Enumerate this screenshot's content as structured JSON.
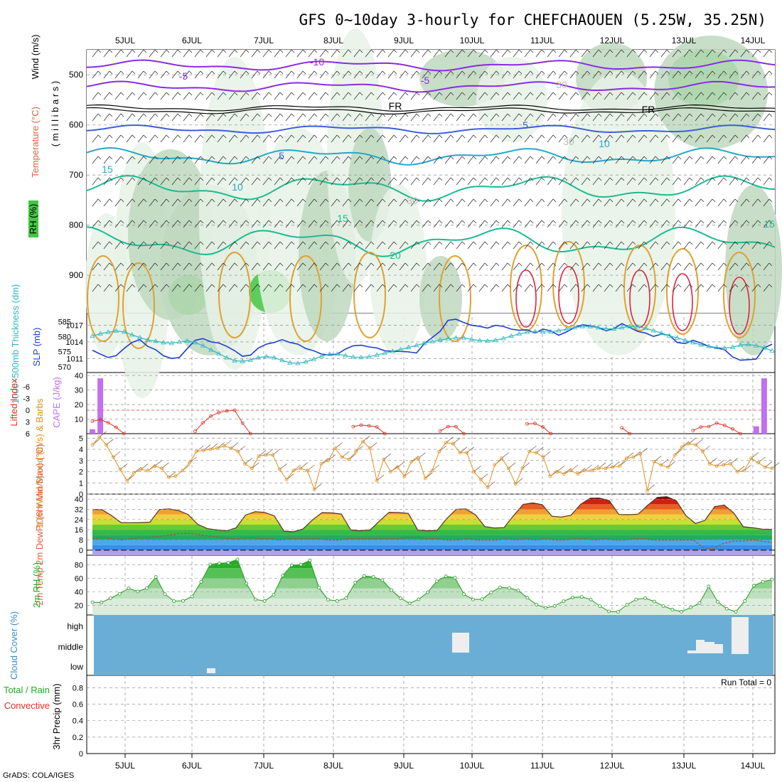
{
  "colors": {
    "temp_contours": [
      "#8a2be2",
      "#3a5fd9",
      "#23a9c9",
      "#1cba92",
      "#e0a030",
      "#e07020",
      "#e02040",
      "#c0108a"
    ],
    "rh_shades": [
      "#e6f2e6",
      "#bed8be",
      "#8fbf8f",
      "#44c744"
    ],
    "slp_line": "#1a3fd0",
    "thickness_line": "#2fb8c0",
    "li_line": "#e03020",
    "cape_bar": "#c070f0",
    "wind_line": "#e09020",
    "cloud_bg": "#6aaed6",
    "cloud_fill": "#eeeeee",
    "rh2m_line": "#229922",
    "dewpt_line": "#a05a2c"
  },
  "chart_data": [
    {
      "type": "heatmap",
      "title": "GFS 0~10day 3-hourly for CHEFCHAOUEN (5.25W, 35.25N)",
      "panel": "upper-air",
      "ylabel_parts": [
        "RH (%)",
        "Temperature (°C)",
        "Wind (m/s)"
      ],
      "yaxis_label": "( m i l l i b a r s )",
      "x_ticks": [
        "5JUL",
        "6JUL",
        "7JUL",
        "8JUL",
        "9JUL",
        "10JUL",
        "11JUL",
        "12JUL",
        "13JUL",
        "14JUL"
      ],
      "y_ticks": [
        500,
        600,
        700,
        800,
        900
      ],
      "ylim": [
        450,
        975
      ],
      "contour_labels": [
        "-10",
        "-5",
        "-5",
        "FR",
        "FR",
        "5",
        "5",
        "10",
        "10",
        "15",
        "15",
        "15",
        "20",
        "30",
        "30",
        "30"
      ],
      "rh_key": "RH (%)",
      "grid": true
    },
    {
      "type": "line",
      "panel": "slp-thickness",
      "ylabel_left": "1000~500mb Thickness (dm)",
      "ylabel_right": "SLP (mb)",
      "left_ticks": [
        570,
        575,
        580,
        585
      ],
      "right_ticks": [
        1011,
        1014,
        1017
      ],
      "series": [
        {
          "name": "SLP (mb)",
          "axis": "right",
          "values": [
            1012.5,
            1011.8,
            1011.2,
            1011.5,
            1012.8,
            1013.9,
            1014.4,
            1013.2,
            1012.6,
            1011.5,
            1011.0,
            1011.2,
            1012.8,
            1014.3,
            1014.6,
            1014.0,
            1013.8,
            1013.2,
            1012.4,
            1011.4,
            1011.6,
            1012.9,
            1013.6,
            1013.9,
            1014.4,
            1013.9,
            1013.6,
            1012.8,
            1012.4,
            1011.8,
            1011.6,
            1011.8,
            1012.7,
            1013.3,
            1013.4,
            1013.1,
            1012.9,
            1012.4,
            1012.3,
            1012.3,
            1012.2,
            1012.0,
            1013.7,
            1014.8,
            1015.9,
            1017.9,
            1018.1,
            1017.5,
            1017.0,
            1016.8,
            1016.5,
            1017.0,
            1016.8,
            1016.3,
            1016.1,
            1016.2,
            1015.6,
            1016.3,
            1016.0,
            1015.2,
            1015.8,
            1016.6,
            1017.1,
            1016.9,
            1016.6,
            1016.0,
            1016.4,
            1017.3,
            1016.6,
            1015.9,
            1015.6,
            1015.0,
            1015.4,
            1015.2,
            1013.9,
            1013.7,
            1014.3,
            1013.8,
            1013.2,
            1012.9,
            1012.6,
            1011.3,
            1010.7,
            1010.8,
            1010.9,
            1012.9,
            1013.6
          ]
        },
        {
          "name": "1000~500mb Thickness (dm)",
          "axis": "left",
          "values": [
            580.2,
            581.0,
            581.5,
            581.9,
            581.6,
            580.6,
            579.7,
            578.9,
            578.5,
            578.0,
            577.8,
            578.2,
            578.6,
            578.0,
            577.0,
            575.6,
            574.3,
            573.0,
            572.0,
            571.8,
            572.2,
            573.0,
            573.4,
            573.0,
            572.1,
            571.3,
            571.1,
            571.6,
            572.5,
            573.5,
            574.2,
            574.2,
            573.7,
            573.2,
            573.1,
            573.3,
            573.9,
            574.5,
            575.1,
            575.7,
            576.4,
            577.1,
            577.8,
            578.4,
            578.9,
            579.3,
            579.6,
            579.6,
            579.1,
            578.7,
            578.6,
            578.8,
            579.4,
            580.2,
            580.9,
            581.5,
            581.7,
            581.6,
            581.6,
            582.0,
            582.5,
            583.0,
            583.4,
            583.4,
            583.0,
            582.6,
            582.6,
            583.0,
            583.4,
            583.3,
            582.8,
            582.0,
            581.2,
            580.3,
            579.6,
            578.8,
            578.0,
            577.3,
            576.8,
            576.4,
            576.2,
            576.5,
            577.2,
            577.4,
            577.0,
            576.3,
            575.3
          ]
        }
      ]
    },
    {
      "type": "line",
      "panel": "lifted-index-cape",
      "ylabel_left": "Lifted Index",
      "ylabel_right": "CAPE (J/kg)",
      "left_ticks": [
        "-6",
        "-3",
        "0",
        "3",
        "6"
      ],
      "right_ticks": [
        10,
        20,
        30,
        40
      ],
      "series": [
        {
          "name": "Lifted Index",
          "values": [
            2.8,
            2.4,
            3.2,
            4.4,
            6.6,
            null,
            null,
            null,
            null,
            null,
            null,
            null,
            null,
            5.4,
            3.2,
            1.5,
            0.6,
            0.2,
            0.0,
            3.3,
            6.6,
            null,
            null,
            null,
            null,
            null,
            null,
            null,
            null,
            null,
            null,
            null,
            null,
            4.2,
            3.8,
            4.0,
            4.3,
            6.2,
            null,
            null,
            null,
            null,
            null,
            null,
            5.3,
            4.2,
            4.2,
            6.0,
            null,
            null,
            null,
            null,
            null,
            null,
            null,
            3.5,
            3.4,
            4.3,
            6.2,
            null,
            null,
            null,
            null,
            null,
            null,
            null,
            null,
            4.5,
            6.0,
            null,
            null,
            null,
            null,
            null,
            null,
            null,
            5.2,
            4.3,
            4.2,
            3.3,
            3.9,
            4.8,
            6.6,
            null,
            null,
            null,
            null
          ]
        },
        {
          "name": "CAPE (J/kg)",
          "values": [
            3,
            38,
            0,
            0,
            0,
            0,
            0,
            0,
            0,
            0,
            0,
            0,
            0,
            0,
            0,
            0,
            0,
            0,
            0,
            0,
            0,
            0,
            0,
            0,
            0,
            0,
            0,
            0,
            0,
            0,
            0,
            0,
            0,
            0,
            0,
            0,
            0,
            0,
            0,
            0,
            0,
            0,
            0,
            0,
            0,
            0,
            0,
            0,
            0,
            0,
            0,
            0,
            0,
            0,
            0,
            0,
            0,
            0,
            0,
            0,
            0,
            0,
            0,
            0,
            0,
            0,
            0,
            0,
            0,
            0,
            0,
            0,
            0,
            0,
            0,
            0,
            0,
            0,
            0,
            0,
            0,
            0,
            0,
            0,
            5,
            38,
            0
          ]
        }
      ]
    },
    {
      "type": "line",
      "panel": "wind10m",
      "ylabel": "10m Wind Speed (m/s) & Barbs",
      "y_ticks": [
        0,
        1,
        2,
        3,
        4,
        5
      ],
      "ylim": [
        0,
        5
      ],
      "values": [
        4.4,
        5.1,
        4.4,
        3.3,
        2.2,
        1.2,
        1.9,
        2.2,
        2.1,
        2.5,
        2.3,
        1.5,
        1.6,
        2.1,
        2.8,
        3.8,
        3.9,
        4.0,
        4.1,
        4.3,
        4.1,
        3.8,
        2.7,
        2.3,
        3.4,
        3.5,
        3.5,
        2.2,
        1.3,
        2.1,
        2.3,
        2.1,
        0.4,
        2.7,
        3.0,
        4.1,
        3.3,
        3.1,
        3.8,
        4.7,
        4.1,
        1.2,
        3.1,
        2.0,
        2.4,
        1.6,
        2.9,
        3.2,
        1.4,
        2.1,
        3.8,
        4.6,
        4.5,
        3.7,
        3.7,
        2.0,
        1.3,
        0.6,
        2.6,
        3.2,
        2.3,
        0.9,
        2.3,
        3.8,
        3.7,
        3.3,
        1.6,
        2.0,
        1.8,
        2.1,
        1.8,
        2.1,
        2.1,
        2.3,
        2.3,
        2.4,
        2.5,
        3.2,
        3.3,
        3.6,
        0.3,
        2.9,
        2.6,
        2.4,
        3.5,
        4.2,
        4.5,
        4.4,
        3.8,
        2.7,
        2.5,
        2.6,
        2.7,
        2.0,
        2.1,
        3.2,
        2.8,
        2.4,
        2.3
      ],
      "grid": true
    },
    {
      "type": "area",
      "panel": "temp-dewpt",
      "ylabel": "2m Temp 2m DewPt (6hr Min/Max) (°C)",
      "y_ticks": [
        0,
        8,
        16,
        24,
        32,
        40
      ],
      "ylim": [
        -4,
        44
      ],
      "series": [
        {
          "name": "2m Temp",
          "values": [
            31.9,
            31.8,
            27.1,
            21.6,
            21.5,
            21.6,
            21.9,
            31.9,
            32.4,
            31.1,
            28.0,
            20.3,
            16.9,
            15.9,
            15.1,
            17.5,
            27.5,
            30.2,
            29.6,
            26.9,
            15.0,
            14.4,
            16.6,
            23.8,
            29.5,
            29.2,
            28.3,
            15.8,
            15.2,
            15.8,
            22.9,
            29.7,
            29.5,
            28.8,
            15.7,
            15.2,
            15.4,
            24.7,
            32.0,
            32.4,
            27.8,
            18.5,
            17.4,
            17.7,
            27.1,
            35.9,
            37.1,
            35.7,
            26.6,
            26.0,
            27.4,
            35.9,
            40.8,
            40.9,
            38.8,
            28.0,
            27.8,
            28.2,
            35.2,
            41.4,
            42.0,
            38.8,
            27.1,
            20.9,
            23.4,
            34.1,
            35.4,
            29.2,
            18.3,
            17.6,
            16.5,
            16.3
          ]
        },
        {
          "name": "2m DewPt",
          "values": [
            9,
            10,
            9,
            8,
            9,
            10,
            10,
            11,
            12,
            13,
            13,
            12,
            11,
            10,
            9,
            9,
            10,
            9,
            9,
            8,
            9,
            9,
            9,
            9,
            8,
            8,
            9,
            9,
            9,
            9,
            9,
            9,
            10,
            10,
            9,
            9,
            8,
            8,
            9,
            8,
            8,
            8,
            9,
            8,
            9,
            8,
            9,
            8,
            8,
            9,
            9,
            8,
            9,
            8,
            8,
            9,
            9,
            8,
            8,
            8,
            8,
            8,
            2,
            1,
            5,
            7,
            7,
            8,
            7,
            6
          ]
        }
      ]
    },
    {
      "type": "area",
      "panel": "rh2m",
      "ylabel": "2m RH (%)",
      "y_ticks": [
        20,
        40,
        60,
        80
      ],
      "ylim": [
        6,
        94
      ],
      "values": [
        24.7,
        24.4,
        30.6,
        37.2,
        45.3,
        40.6,
        45.4,
        62.0,
        36.8,
        26.4,
        26.7,
        33.2,
        54.9,
        80.5,
        82.1,
        82.9,
        87.7,
        52.3,
        28.8,
        26.5,
        36.0,
        64.1,
        79.2,
        80.2,
        86.4,
        46.2,
        28.4,
        26.6,
        30.8,
        53.6,
        63.4,
        62.0,
        57.3,
        42.6,
        30.8,
        23.1,
        29.1,
        39.3,
        55.6,
        62.9,
        60.9,
        36.6,
        28.8,
        29.3,
        39.3,
        46.6,
        45.7,
        42.0,
        31.3,
        21.2,
        16.5,
        19.2,
        26.3,
        31.8,
        32.7,
        28.6,
        19.0,
        11.2,
        10.6,
        21.2,
        28.8,
        30.8,
        25.8,
        19.2,
        13.9,
        10.9,
        16.7,
        23.5,
        48.1,
        25.4,
        15.2,
        10.7,
        26.6,
        49.3,
        55.0,
        58.3
      ]
    },
    {
      "type": "bar",
      "panel": "cloud-cover",
      "ylabel": "Cloud Cover (%)",
      "y_labels": [
        "low",
        "middle",
        "high"
      ]
    },
    {
      "type": "bar",
      "panel": "precip",
      "ylabel": "3hr Precip (mm)",
      "legend": [
        "Total / Rain",
        "Convective"
      ],
      "annotation": "Run Total = 0",
      "y_ticks": [
        "0",
        "0.2",
        "0.4",
        "0.6",
        "0.8"
      ],
      "ylim": [
        0,
        0.95
      ],
      "values": [],
      "footer": "GrADS: COLA/IGES"
    }
  ]
}
